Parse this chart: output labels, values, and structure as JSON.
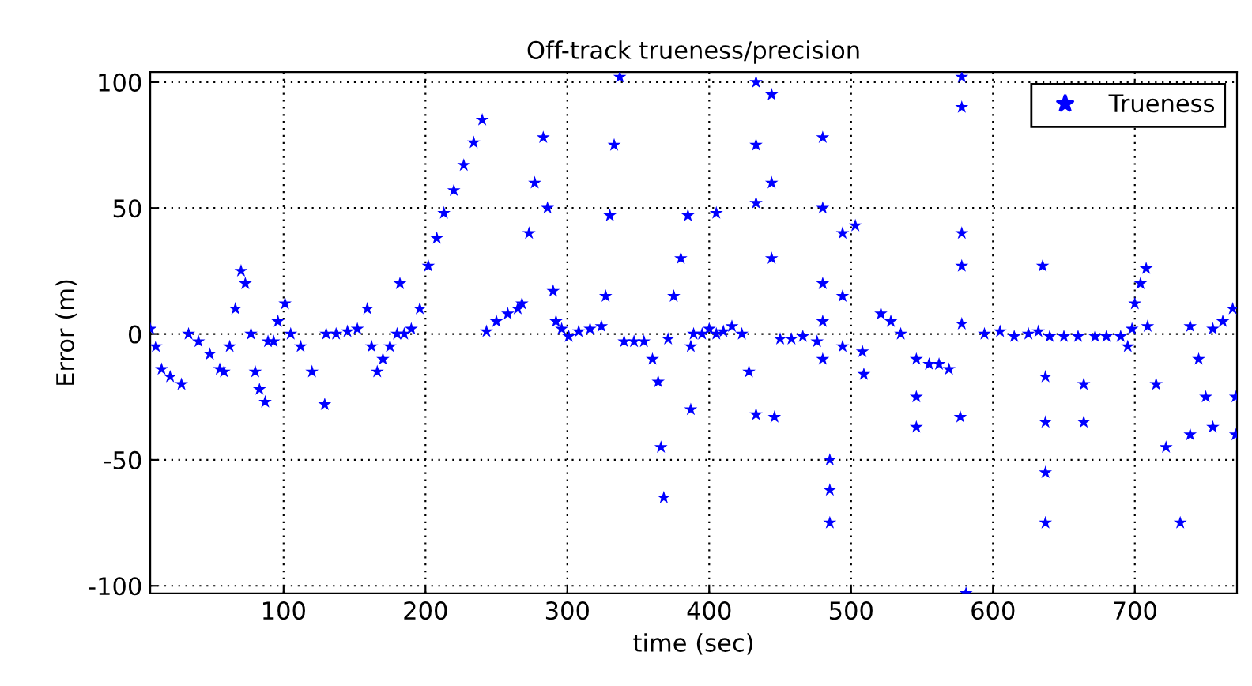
{
  "chart_data": {
    "type": "scatter",
    "title": "Off-track trueness/precision",
    "xlabel": "time (sec)",
    "ylabel": "Error (m)",
    "xlim": [
      6,
      772
    ],
    "ylim": [
      -103,
      104
    ],
    "xticks": [
      100,
      200,
      300,
      400,
      500,
      600,
      700
    ],
    "yticks": [
      -100,
      -50,
      0,
      50,
      100
    ],
    "grid": true,
    "legend": "top right",
    "marker": "star",
    "series": [
      {
        "name": "Trueness",
        "color": "#0000ff",
        "x": [
          6,
          10,
          14,
          20,
          28,
          33,
          40,
          48,
          55,
          58,
          62,
          66,
          70,
          73,
          77,
          80,
          83,
          87,
          89,
          93,
          96,
          101,
          105,
          112,
          120,
          129,
          130,
          137,
          145,
          152,
          159,
          162,
          166,
          170,
          175,
          180,
          182,
          185,
          190,
          196,
          202,
          208,
          213,
          220,
          227,
          234,
          240,
          243,
          250,
          258,
          265,
          268,
          273,
          277,
          283,
          286,
          290,
          292,
          296,
          301,
          308,
          316,
          324,
          327,
          330,
          333,
          337,
          340,
          347,
          354,
          360,
          364,
          366,
          368,
          371,
          375,
          380,
          385,
          387,
          387,
          389,
          395,
          400,
          405,
          405,
          410,
          416,
          423,
          428,
          433,
          433,
          433,
          433,
          444,
          444,
          444,
          446,
          450,
          458,
          466,
          476,
          480,
          480,
          480,
          480,
          480,
          485,
          485,
          485,
          494,
          494,
          494,
          503,
          508,
          509,
          521,
          528,
          535,
          546,
          546,
          546,
          555,
          562,
          569,
          577,
          578,
          578,
          578,
          578,
          578,
          581,
          594,
          605,
          615,
          625,
          632,
          635,
          637,
          637,
          637,
          637,
          640,
          650,
          660,
          664,
          664,
          672,
          680,
          690,
          695,
          698,
          700,
          704,
          708,
          709,
          715,
          722,
          732,
          739,
          739,
          745,
          750,
          755,
          755,
          762,
          769,
          771,
          771
        ],
        "values": [
          2,
          -5,
          -14,
          -17,
          -20,
          0,
          -3,
          -8,
          -14,
          -15,
          -5,
          10,
          25,
          20,
          0,
          -15,
          -22,
          -27,
          -3,
          -3,
          5,
          12,
          0,
          -5,
          -15,
          -28,
          0,
          0,
          1,
          2,
          10,
          -5,
          -15,
          -10,
          -5,
          0,
          20,
          0,
          2,
          10,
          27,
          38,
          48,
          57,
          67,
          76,
          85,
          1,
          5,
          8,
          10,
          12,
          40,
          60,
          78,
          50,
          17,
          5,
          2,
          -1,
          1,
          2,
          3,
          15,
          47,
          75,
          102,
          -3,
          -3,
          -3,
          -10,
          -19,
          -45,
          -65,
          -2,
          15,
          30,
          47,
          -5,
          -30,
          0,
          0,
          2,
          48,
          0,
          1,
          3,
          0,
          -15,
          -32,
          100,
          52,
          75,
          95,
          60,
          30,
          -33,
          -2,
          -2,
          -1,
          -3,
          -10,
          78,
          50,
          20,
          5,
          -50,
          -62,
          -75,
          40,
          15,
          -5,
          43,
          -7,
          -16,
          8,
          5,
          0,
          -10,
          -25,
          -37,
          -12,
          -12,
          -14,
          -33,
          102,
          90,
          40,
          27,
          4,
          -103,
          0,
          1,
          -1,
          0,
          1,
          27,
          -17,
          -35,
          -55,
          -75,
          -1,
          -1,
          -1,
          -20,
          -35,
          -1,
          -1,
          -1,
          -5,
          2,
          12,
          20,
          26,
          3,
          -20,
          -45,
          -75,
          -40,
          3,
          -10,
          -25,
          -37,
          2,
          5,
          10,
          -25,
          -40
        ]
      }
    ]
  }
}
